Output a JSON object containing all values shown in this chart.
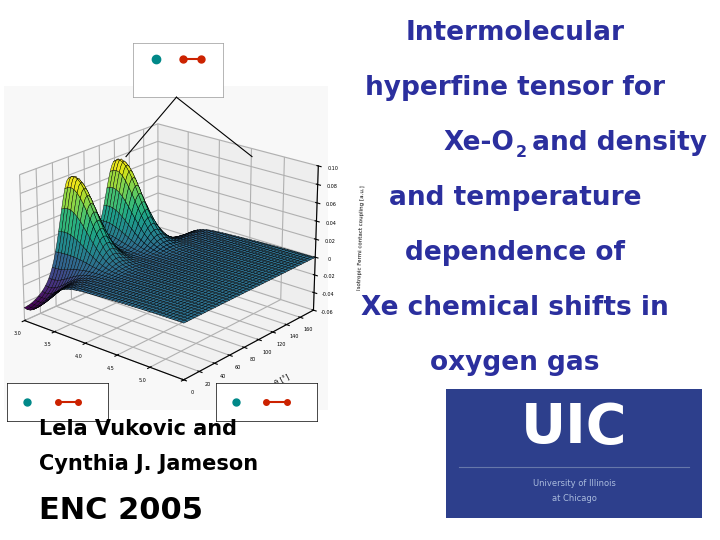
{
  "bg_color": "#ffffff",
  "title_lines": [
    "Intermolecular",
    "hyperfine tensor for",
    "Xe-O2 and density",
    "and temperature",
    "dependence of",
    "Xe chemical shifts in",
    "oxygen gas"
  ],
  "title_color": "#2b2f9e",
  "title_fontsize": 19,
  "author_line1": "Lela Vukovic and",
  "author_line2": "Cynthia J. Jameson",
  "conference": "ENC 2005",
  "author_color": "#000000",
  "author_fontsize": 15,
  "conf_fontsize": 22,
  "uic_bg": "#2d3f8c",
  "uic_text": "UIC",
  "uic_sub1": "University of Illinois",
  "uic_sub2": "at Chicago",
  "uic_text_color": "#ffffff",
  "uic_sub_color": "#aabbdd",
  "xe_color": "#008888",
  "o_color": "#cc2200"
}
